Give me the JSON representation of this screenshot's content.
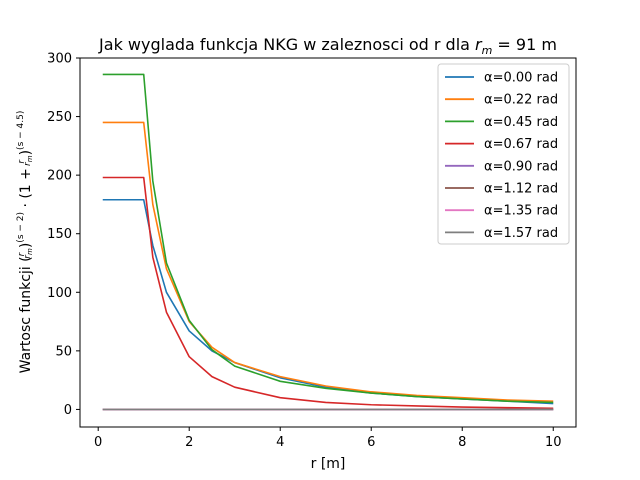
{
  "chart_data": {
    "type": "line",
    "title": "Jak wyglada funkcja NKG w zaleznosci od r dla r_m = 91 m",
    "title_parts": {
      "prefix": "Jak wyglada funkcja NKG w zaleznosci od r dla ",
      "var": "r",
      "sub": "m",
      "suffix": " = 91 m"
    },
    "xlabel": "r [m]",
    "ylabel": "Wartosc funkcji (r/r_m)^(s−2) · (1 + r/r_m)^(s−4.5)",
    "ylabel_prefix": "Wartosc funkcji ",
    "xlim": [
      -0.4,
      10.5
    ],
    "ylim": [
      -15,
      300
    ],
    "xticks": [
      0,
      2,
      4,
      6,
      8,
      10
    ],
    "yticks": [
      0,
      50,
      100,
      150,
      200,
      250,
      300
    ],
    "grid": false,
    "legend_position": "top-right",
    "series": [
      {
        "name": "α=0.00 rad",
        "color": "#1f77b4",
        "x": [
          0.1,
          1.0,
          1.2,
          1.5,
          2.0,
          2.5,
          3.0,
          4.0,
          5.0,
          6.0,
          7.0,
          8.0,
          9.0,
          10.0
        ],
        "y": [
          179,
          179,
          140,
          100,
          67,
          50,
          40,
          27,
          19,
          14,
          11,
          9,
          7,
          5
        ]
      },
      {
        "name": "α=0.22 rad",
        "color": "#ff7f0e",
        "x": [
          0.1,
          1.0,
          1.2,
          1.5,
          2.0,
          2.5,
          3.0,
          4.0,
          5.0,
          6.0,
          7.0,
          8.0,
          9.0,
          10.0
        ],
        "y": [
          245,
          245,
          175,
          120,
          75,
          53,
          40,
          28,
          20,
          15,
          12,
          10,
          8,
          7
        ]
      },
      {
        "name": "α=0.45 rad",
        "color": "#2ca02c",
        "x": [
          0.1,
          1.0,
          1.2,
          1.5,
          2.0,
          2.5,
          3.0,
          4.0,
          5.0,
          6.0,
          7.0,
          8.0,
          9.0,
          10.0
        ],
        "y": [
          286,
          286,
          195,
          125,
          76,
          51,
          37,
          24,
          18,
          14,
          11,
          9,
          7,
          6
        ]
      },
      {
        "name": "α=0.67 rad",
        "color": "#d62728",
        "x": [
          0.1,
          1.0,
          1.2,
          1.5,
          2.0,
          2.5,
          3.0,
          4.0,
          5.0,
          6.0,
          7.0,
          8.0,
          9.0,
          10.0
        ],
        "y": [
          198,
          198,
          130,
          83,
          45,
          28,
          19,
          10,
          6,
          4,
          3,
          2,
          1.5,
          1
        ]
      },
      {
        "name": "α=0.90 rad",
        "color": "#9467bd",
        "x": [
          0.1,
          10.0
        ],
        "y": [
          0,
          0
        ]
      },
      {
        "name": "α=1.12 rad",
        "color": "#8c564b",
        "x": [
          0.1,
          10.0
        ],
        "y": [
          0,
          0
        ]
      },
      {
        "name": "α=1.35 rad",
        "color": "#e377c2",
        "x": [
          0.1,
          10.0
        ],
        "y": [
          0,
          0
        ]
      },
      {
        "name": "α=1.57 rad",
        "color": "#7f7f7f",
        "x": [
          0.1,
          10.0
        ],
        "y": [
          0,
          0
        ]
      }
    ]
  }
}
